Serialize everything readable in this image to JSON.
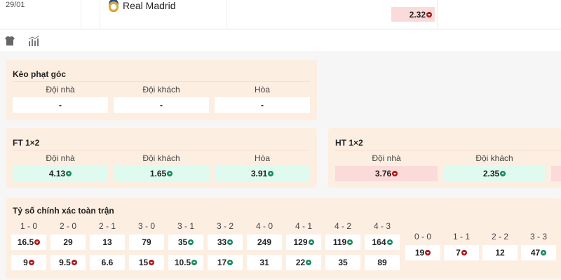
{
  "match": {
    "date": "29/01",
    "team": "Real Madrid",
    "odd": {
      "value": "2.32",
      "dir": "down"
    }
  },
  "icons": [
    "jersey-icon",
    "stats-icon"
  ],
  "corner": {
    "title": "Kèo phạt góc",
    "cols": [
      {
        "label": "Đội nhà",
        "value": "-",
        "dir": ""
      },
      {
        "label": "Đội khách",
        "value": "-",
        "dir": ""
      },
      {
        "label": "Hòa",
        "value": "-",
        "dir": ""
      }
    ]
  },
  "ft": {
    "title": "FT 1×2",
    "cols": [
      {
        "label": "Đội nhà",
        "value": "4.13",
        "dir": "up"
      },
      {
        "label": "Đội khách",
        "value": "1.65",
        "dir": "up"
      },
      {
        "label": "Hòa",
        "value": "3.91",
        "dir": "up"
      }
    ]
  },
  "ht": {
    "title": "HT 1×2",
    "cols": [
      {
        "label": "Đội nhà",
        "value": "3.76",
        "dir": "down"
      },
      {
        "label": "Đội khách",
        "value": "2.35",
        "dir": "up"
      }
    ]
  },
  "exact": {
    "title": "Tỷ số chính xác toàn trận",
    "scores": [
      {
        "label": "1 - 0",
        "home": {
          "v": "16.5",
          "d": "down"
        },
        "away": {
          "v": "9",
          "d": "down"
        }
      },
      {
        "label": "2 - 0",
        "home": {
          "v": "29",
          "d": ""
        },
        "away": {
          "v": "9.5",
          "d": "down"
        }
      },
      {
        "label": "2 - 1",
        "home": {
          "v": "13",
          "d": ""
        },
        "away": {
          "v": "6.6",
          "d": ""
        }
      },
      {
        "label": "3 - 0",
        "home": {
          "v": "79",
          "d": ""
        },
        "away": {
          "v": "15",
          "d": "down"
        }
      },
      {
        "label": "3 - 1",
        "home": {
          "v": "35",
          "d": "up"
        },
        "away": {
          "v": "10.5",
          "d": "up"
        }
      },
      {
        "label": "3 - 2",
        "home": {
          "v": "33",
          "d": "up"
        },
        "away": {
          "v": "17",
          "d": "up"
        }
      },
      {
        "label": "4 - 0",
        "home": {
          "v": "249",
          "d": ""
        },
        "away": {
          "v": "31",
          "d": ""
        }
      },
      {
        "label": "4 - 1",
        "home": {
          "v": "129",
          "d": "up"
        },
        "away": {
          "v": "22",
          "d": "up"
        }
      },
      {
        "label": "4 - 2",
        "home": {
          "v": "119",
          "d": "up"
        },
        "away": {
          "v": "35",
          "d": ""
        }
      },
      {
        "label": "4 - 3",
        "home": {
          "v": "164",
          "d": "up"
        },
        "away": {
          "v": "89",
          "d": ""
        }
      }
    ],
    "draws": [
      {
        "label": "0 - 0",
        "v": "19",
        "d": "down"
      },
      {
        "label": "1 - 1",
        "v": "7",
        "d": "down"
      },
      {
        "label": "2 - 2",
        "v": "12",
        "d": ""
      },
      {
        "label": "3 - 3",
        "v": "47",
        "d": "up"
      }
    ]
  },
  "colors": {
    "up_bg": "#dffaee",
    "down_bg": "#fbdada",
    "up_arrow": "#1b8a5a",
    "down_arrow": "#b01818",
    "card_bg": "#fdeee2"
  }
}
